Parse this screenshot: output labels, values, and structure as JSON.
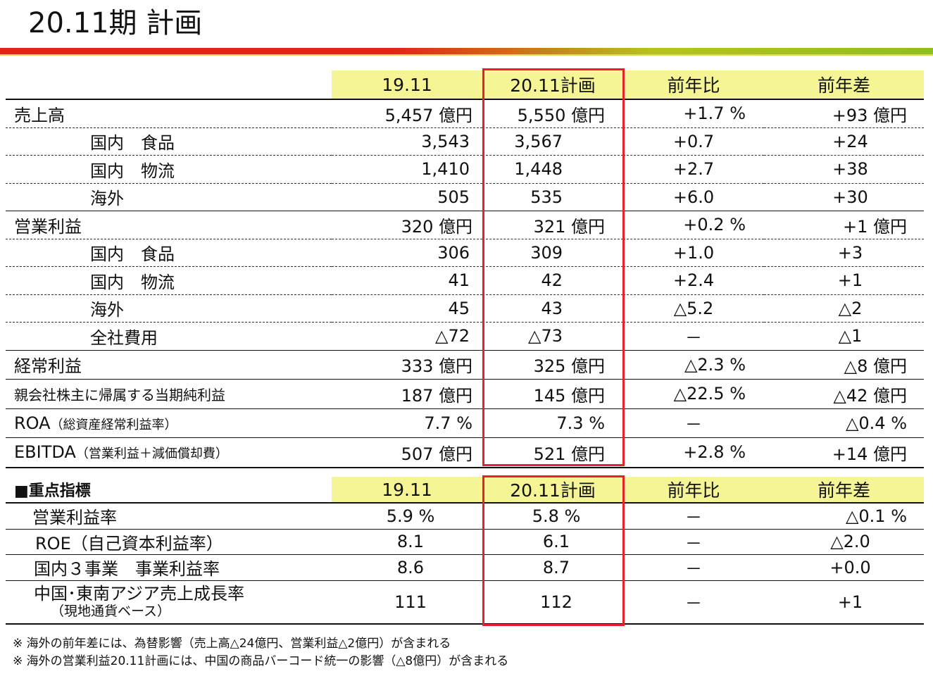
{
  "title": "20.11期 計画",
  "table1": {
    "headers": [
      "19.11",
      "20.11計画",
      "前年比",
      "前年差"
    ],
    "rows": [
      {
        "label": "売上高",
        "v1": "5,457 億円",
        "v2": "5,550 億円",
        "v3": "+1.7 %",
        "v4": "+93 億円"
      },
      {
        "label": "国内　食品",
        "v1": "3,543",
        "v2": "3,567",
        "v3": "+0.7",
        "v4": "+24"
      },
      {
        "label": "国内　物流",
        "v1": "1,410",
        "v2": "1,448",
        "v3": "+2.7",
        "v4": "+38"
      },
      {
        "label": "海外",
        "v1": "505",
        "v2": "535",
        "v3": "+6.0",
        "v4": "+30"
      },
      {
        "label": "営業利益",
        "v1": "320 億円",
        "v2": "321 億円",
        "v3": "+0.2 %",
        "v4": "+1 億円"
      },
      {
        "label": "国内　食品",
        "v1": "306",
        "v2": "309",
        "v3": "+1.0",
        "v4": "+3"
      },
      {
        "label": "国内　物流",
        "v1": "41",
        "v2": "42",
        "v3": "+2.4",
        "v4": "+1"
      },
      {
        "label": "海外",
        "v1": "45",
        "v2": "43",
        "v3": "△5.2",
        "v4": "△2"
      },
      {
        "label": "全社費用",
        "v1": "△72",
        "v2": "△73",
        "v3": "－",
        "v4": "△1"
      },
      {
        "label": "経常利益",
        "v1": "333 億円",
        "v2": "325 億円",
        "v3": "△2.3 %",
        "v4": "△8 億円"
      },
      {
        "label": "親会社株主に帰属する当期純利益",
        "v1": "187 億円",
        "v2": "145 億円",
        "v3": "△22.5 %",
        "v4": "△42 億円"
      },
      {
        "label": "ROA",
        "label_sub": "（総資産経常利益率）",
        "v1": "7.7 %",
        "v2": "7.3 %",
        "v3": "－",
        "v4": "△0.4 %"
      },
      {
        "label": "EBITDA",
        "label_sub": "（営業利益＋減価償却費）",
        "v1": "507 億円",
        "v2": "521 億円",
        "v3": "+2.8 %",
        "v4": "+14 億円"
      }
    ]
  },
  "table2": {
    "section_label": "■重点指標",
    "headers": [
      "19.11",
      "20.11計画",
      "前年比",
      "前年差"
    ],
    "rows": [
      {
        "label": "営業利益率",
        "v1": "5.9 %",
        "v2": "5.8 %",
        "v3": "－",
        "v4": "△0.1 %"
      },
      {
        "label": "ROE（自己資本利益率）",
        "v1": "8.1",
        "v2": "6.1",
        "v3": "－",
        "v4": "△2.0"
      },
      {
        "label": "国内３事業　事業利益率",
        "v1": "8.6",
        "v2": "8.7",
        "v3": "－",
        "v4": "+0.0"
      },
      {
        "label": "中国･東南アジア売上成長率",
        "label_sub": "（現地通貨ベース）",
        "v1": "111",
        "v2": "112",
        "v3": "－",
        "v4": "+1"
      }
    ]
  },
  "notes": [
    "※ 海外の前年差には、為替影響（売上高△24億円、営業利益△2億円）が含まれる",
    "※ 海外の営業利益20.11計画には、中国の商品バーコード統一の影響（△8億円）が含まれる"
  ],
  "colors": {
    "highlight_header": "#f5f596",
    "plan_box": "#e8202a"
  }
}
